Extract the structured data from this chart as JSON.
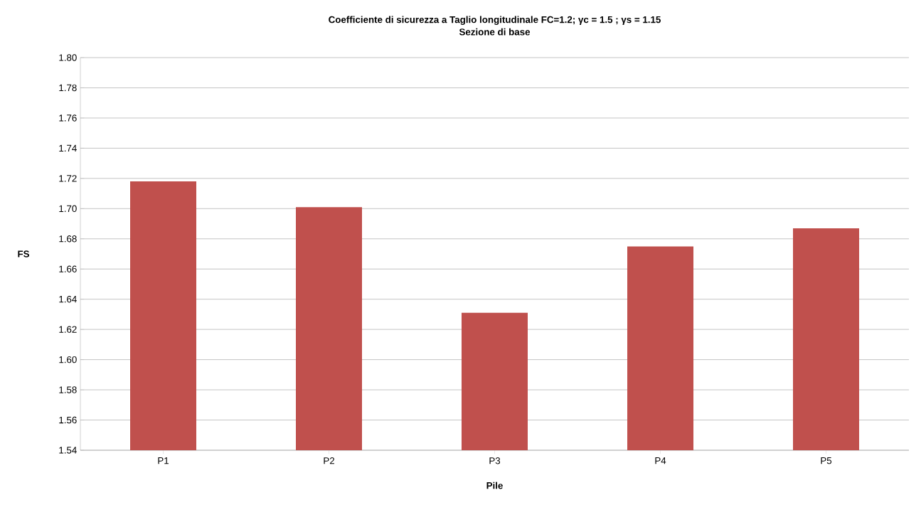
{
  "chart_data": {
    "type": "bar",
    "title": "Coefficiente di sicurezza a Taglio longitudinale   FC=1.2; γc = 1.5 ; γs = 1.15",
    "subtitle": "Sezione di base",
    "xlabel": "Pile",
    "ylabel": "FS",
    "categories": [
      "P1",
      "P2",
      "P3",
      "P4",
      "P5"
    ],
    "values": [
      1.718,
      1.701,
      1.631,
      1.675,
      1.687
    ],
    "color": "#c0504d",
    "ylim": [
      1.54,
      1.8
    ],
    "yticks": [
      {
        "value": 1.54,
        "label": "1.54"
      },
      {
        "value": 1.56,
        "label": "1.56"
      },
      {
        "value": 1.58,
        "label": "1.58"
      },
      {
        "value": 1.6,
        "label": "1.60"
      },
      {
        "value": 1.62,
        "label": "1.62"
      },
      {
        "value": 1.64,
        "label": "1.64"
      },
      {
        "value": 1.66,
        "label": "1.66"
      },
      {
        "value": 1.68,
        "label": "1.68"
      },
      {
        "value": 1.7,
        "label": "1.70"
      },
      {
        "value": 1.72,
        "label": "1.72"
      },
      {
        "value": 1.74,
        "label": "1.74"
      },
      {
        "value": 1.76,
        "label": "1.76"
      },
      {
        "value": 1.78,
        "label": "1.78"
      },
      {
        "value": 1.8,
        "label": "1.80"
      }
    ],
    "grid": "y"
  }
}
